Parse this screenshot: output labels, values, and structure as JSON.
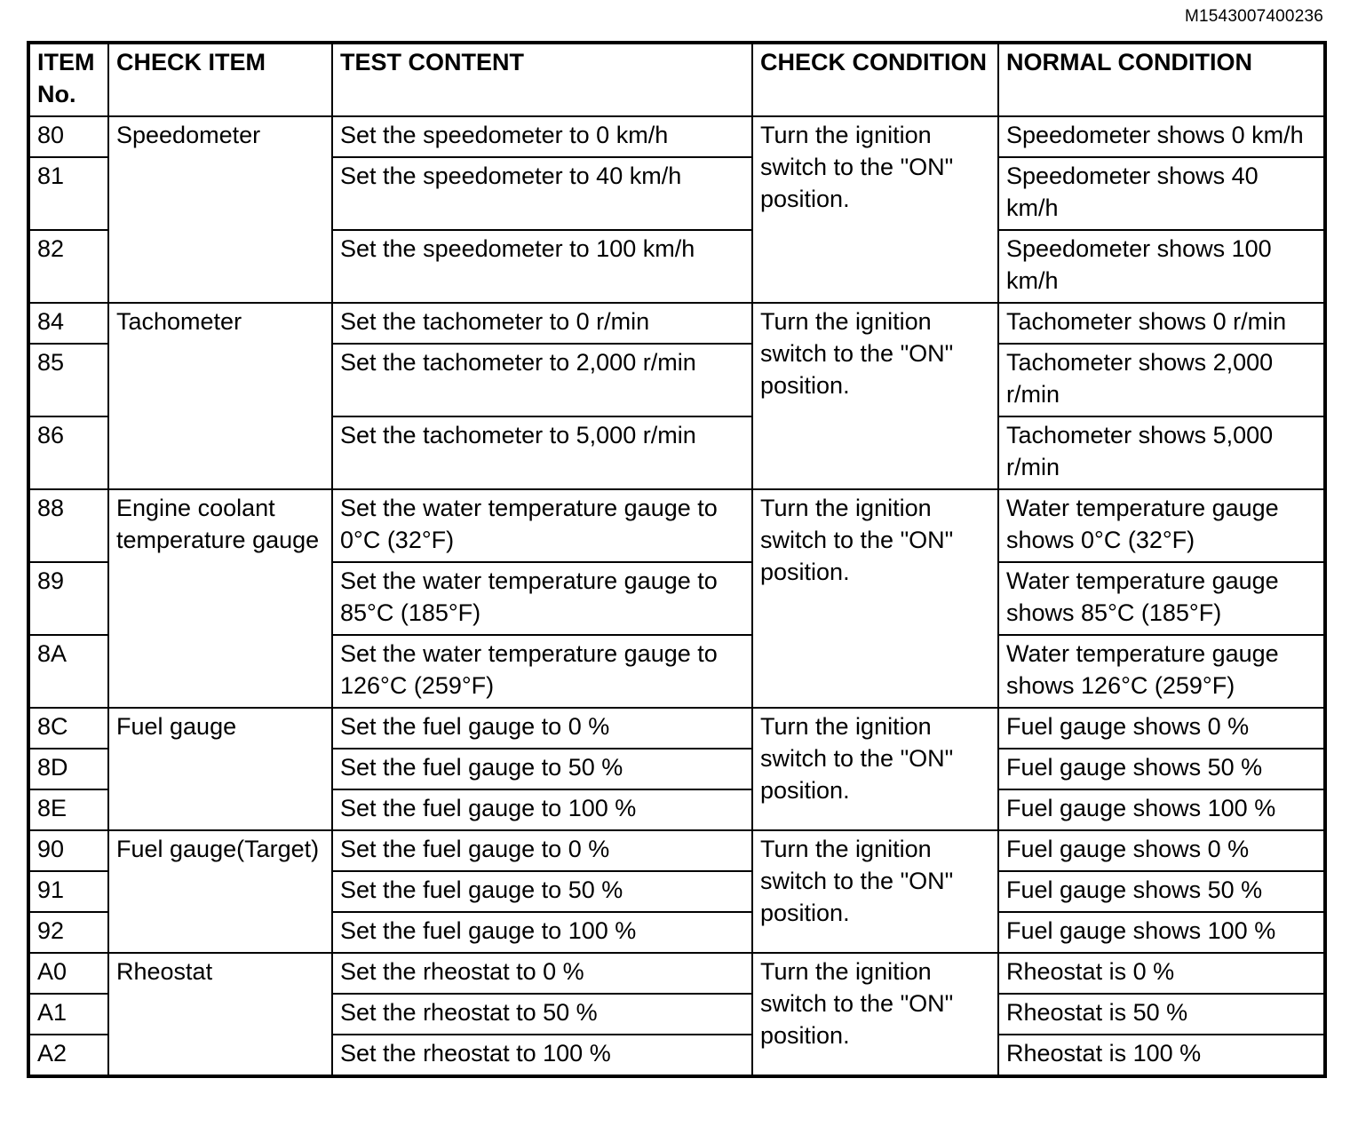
{
  "doc_id": "M1543007400236",
  "table": {
    "headers": {
      "item_no": "ITEM No.",
      "check_item": "CHECK ITEM",
      "test_content": "TEST CONTENT",
      "check_condition": "CHECK CONDITION",
      "normal_condition": "NORMAL CONDITION"
    },
    "groups": [
      {
        "check_item": "Speedometer",
        "check_condition": "Turn the ignition switch to the \"ON\" position.",
        "rows": [
          {
            "no": "80",
            "test": "Set the speedometer to 0 km/h",
            "normal": "Speedometer shows 0 km/h"
          },
          {
            "no": "81",
            "test": "Set the speedometer to 40 km/h",
            "normal": "Speedometer shows 40 km/h"
          },
          {
            "no": "82",
            "test": "Set the speedometer to 100 km/h",
            "normal": "Speedometer shows 100 km/h"
          }
        ]
      },
      {
        "check_item": "Tachometer",
        "check_condition": "Turn the ignition switch to the \"ON\" position.",
        "rows": [
          {
            "no": "84",
            "test": "Set the tachometer to 0 r/min",
            "normal": "Tachometer shows 0 r/min"
          },
          {
            "no": "85",
            "test": "Set the tachometer to 2,000 r/min",
            "normal": "Tachometer shows 2,000 r/min"
          },
          {
            "no": "86",
            "test": "Set the tachometer to 5,000 r/min",
            "normal": "Tachometer shows 5,000 r/min"
          }
        ]
      },
      {
        "check_item": "Engine coolant temperature gauge",
        "check_condition": "Turn the ignition switch to the \"ON\" position.",
        "rows": [
          {
            "no": "88",
            "test": "Set the water temperature gauge to 0°C (32°F)",
            "normal": "Water temperature gauge shows 0°C (32°F)"
          },
          {
            "no": "89",
            "test": "Set the water temperature gauge to 85°C (185°F)",
            "normal": "Water temperature gauge shows 85°C (185°F)"
          },
          {
            "no": "8A",
            "test": "Set the water temperature gauge to 126°C (259°F)",
            "normal": "Water temperature gauge shows 126°C (259°F)"
          }
        ]
      },
      {
        "check_item": "Fuel gauge",
        "check_condition": "Turn the ignition switch to the \"ON\" position.",
        "rows": [
          {
            "no": "8C",
            "test": "Set the fuel gauge to 0 %",
            "normal": "Fuel gauge shows 0 %"
          },
          {
            "no": "8D",
            "test": "Set the fuel gauge to 50 %",
            "normal": "Fuel gauge shows 50 %"
          },
          {
            "no": "8E",
            "test": "Set the fuel gauge to 100 %",
            "normal": "Fuel gauge shows 100 %"
          }
        ]
      },
      {
        "check_item": "Fuel gauge(Target)",
        "check_condition": "Turn the ignition switch to the \"ON\" position.",
        "rows": [
          {
            "no": "90",
            "test": "Set the fuel gauge to 0 %",
            "normal": "Fuel gauge shows 0 %"
          },
          {
            "no": "91",
            "test": "Set the fuel gauge to 50 %",
            "normal": "Fuel gauge shows 50 %"
          },
          {
            "no": "92",
            "test": "Set the fuel gauge to 100 %",
            "normal": "Fuel gauge shows 100 %"
          }
        ]
      },
      {
        "check_item": "Rheostat",
        "check_condition": "Turn the ignition switch to the \"ON\" position.",
        "rows": [
          {
            "no": "A0",
            "test": "Set the rheostat to 0 %",
            "normal": "Rheostat is 0 %"
          },
          {
            "no": "A1",
            "test": "Set the rheostat to 50 %",
            "normal": "Rheostat is 50 %"
          },
          {
            "no": "A2",
            "test": "Set the rheostat to 100 %",
            "normal": "Rheostat is 100 %"
          }
        ]
      }
    ]
  }
}
